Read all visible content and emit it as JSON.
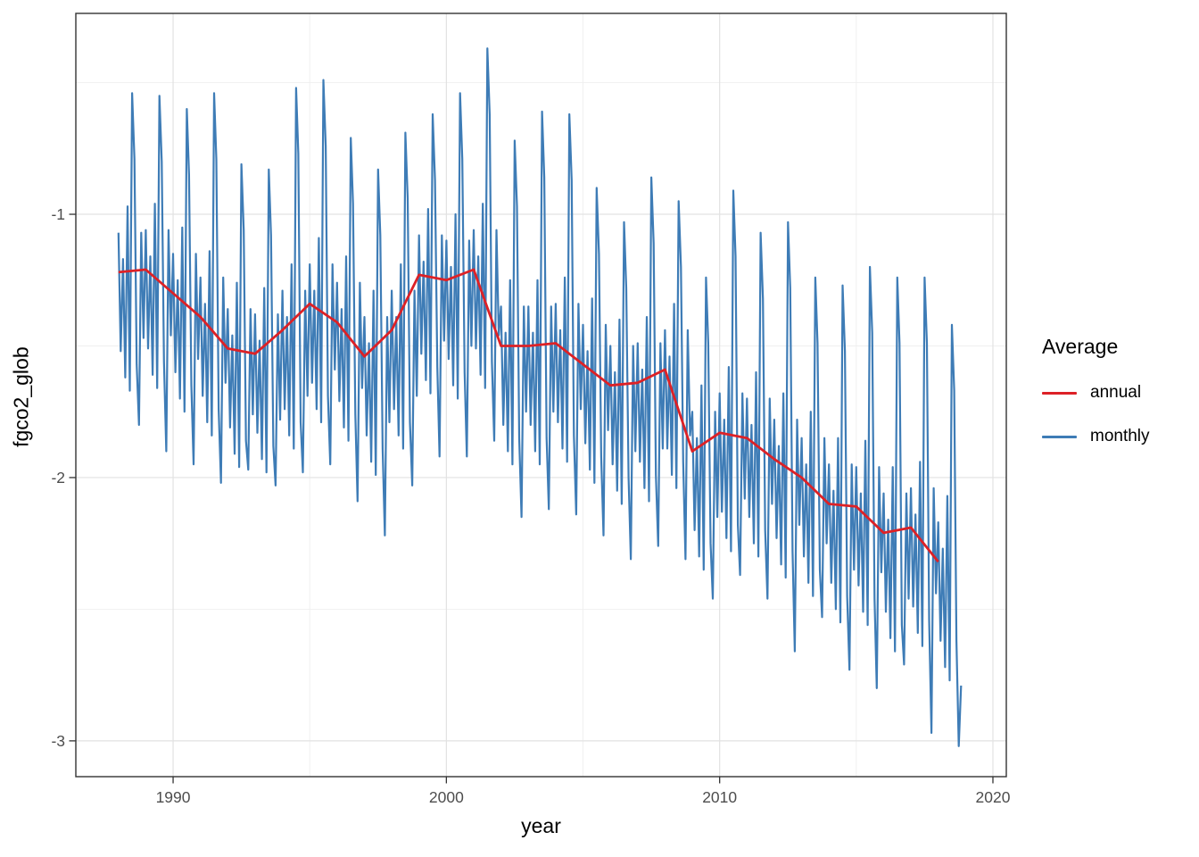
{
  "chart_data": {
    "type": "line",
    "title": "",
    "xlabel": "year",
    "ylabel": "fgco2_glob",
    "xlim": [
      1986.44,
      2020.49
    ],
    "ylim": [
      -3.136,
      -0.237
    ],
    "grid": true,
    "x_ticks": [
      1990,
      2000,
      2010,
      2020
    ],
    "x_tick_labels": [
      "1990",
      "2000",
      "2010",
      "2020"
    ],
    "x_minor_ticks": [
      1995,
      2005,
      2015
    ],
    "y_ticks": [
      -1,
      -2,
      -3
    ],
    "y_tick_labels": [
      "-1",
      "-2",
      "-3"
    ],
    "y_minor_ticks": [
      -0.5,
      -1.5,
      -2.5
    ],
    "legend": {
      "title": "Average",
      "position": "right",
      "items": [
        {
          "label": "annual",
          "color": "#dd2126"
        },
        {
          "label": "monthly",
          "color": "#3e7cb6"
        }
      ]
    },
    "series": [
      {
        "name": "annual",
        "color": "#dd2126",
        "width": 2.8,
        "x": [
          1988,
          1989,
          1990,
          1991,
          1992,
          1993,
          1994,
          1995,
          1996,
          1997,
          1998,
          1999,
          2000,
          2001,
          2002,
          2003,
          2004,
          2005,
          2006,
          2007,
          2008,
          2009,
          2010,
          2011,
          2012,
          2013,
          2014,
          2015,
          2016,
          2017,
          2018
        ],
        "values": [
          -1.22,
          -1.21,
          -1.3,
          -1.39,
          -1.51,
          -1.53,
          -1.44,
          -1.34,
          -1.41,
          -1.54,
          -1.44,
          -1.23,
          -1.25,
          -1.21,
          -1.5,
          -1.5,
          -1.49,
          -1.57,
          -1.65,
          -1.64,
          -1.59,
          -1.9,
          -1.83,
          -1.85,
          -1.93,
          -2.0,
          -2.1,
          -2.11,
          -2.21,
          -2.19,
          -2.32
        ]
      },
      {
        "name": "monthly",
        "color": "#3e7cb6",
        "width": 2.2,
        "x_start_year": 1988,
        "x_step": "1 month",
        "values": [
          -1.07,
          -1.52,
          -1.17,
          -1.62,
          -0.97,
          -1.67,
          -0.54,
          -0.79,
          -1.57,
          -1.8,
          -1.07,
          -1.47,
          -1.06,
          -1.51,
          -1.16,
          -1.61,
          -0.96,
          -1.66,
          -0.55,
          -0.8,
          -1.56,
          -1.9,
          -1.06,
          -1.46,
          -1.15,
          -1.6,
          -1.25,
          -1.7,
          -1.05,
          -1.75,
          -0.6,
          -0.85,
          -1.65,
          -1.95,
          -1.15,
          -1.55,
          -1.24,
          -1.69,
          -1.34,
          -1.79,
          -1.14,
          -1.84,
          -0.54,
          -0.79,
          -1.74,
          -2.02,
          -1.24,
          -1.64,
          -1.36,
          -1.81,
          -1.46,
          -1.91,
          -1.26,
          -1.96,
          -0.81,
          -1.06,
          -1.86,
          -1.97,
          -1.36,
          -1.76,
          -1.38,
          -1.83,
          -1.48,
          -1.93,
          -1.28,
          -1.98,
          -0.83,
          -1.08,
          -1.88,
          -2.03,
          -1.38,
          -1.78,
          -1.29,
          -1.74,
          -1.39,
          -1.84,
          -1.19,
          -1.89,
          -0.52,
          -0.77,
          -1.79,
          -1.98,
          -1.29,
          -1.69,
          -1.19,
          -1.64,
          -1.29,
          -1.74,
          -1.09,
          -1.79,
          -0.49,
          -0.74,
          -1.69,
          -1.95,
          -1.19,
          -1.59,
          -1.26,
          -1.71,
          -1.36,
          -1.81,
          -1.16,
          -1.86,
          -0.71,
          -0.96,
          -1.76,
          -2.09,
          -1.26,
          -1.66,
          -1.39,
          -1.84,
          -1.49,
          -1.94,
          -1.29,
          -1.99,
          -0.83,
          -1.08,
          -1.89,
          -2.22,
          -1.39,
          -1.79,
          -1.29,
          -1.74,
          -1.39,
          -1.84,
          -1.19,
          -1.89,
          -0.69,
          -0.94,
          -1.79,
          -2.03,
          -1.29,
          -1.69,
          -1.08,
          -1.53,
          -1.18,
          -1.63,
          -0.98,
          -1.68,
          -0.62,
          -0.87,
          -1.58,
          -1.92,
          -1.08,
          -1.48,
          -1.1,
          -1.55,
          -1.2,
          -1.65,
          -1.0,
          -1.7,
          -0.54,
          -0.79,
          -1.6,
          -1.92,
          -1.1,
          -1.5,
          -1.06,
          -1.51,
          -1.16,
          -1.61,
          -0.96,
          -1.66,
          -0.37,
          -0.62,
          -1.56,
          -1.86,
          -1.06,
          -1.46,
          -1.35,
          -1.8,
          -1.45,
          -1.9,
          -1.25,
          -1.95,
          -0.72,
          -0.97,
          -1.85,
          -2.15,
          -1.35,
          -1.75,
          -1.35,
          -1.8,
          -1.45,
          -1.9,
          -1.25,
          -1.95,
          -0.61,
          -0.86,
          -1.85,
          -2.12,
          -1.35,
          -1.75,
          -1.34,
          -1.79,
          -1.44,
          -1.89,
          -1.24,
          -1.94,
          -0.62,
          -0.87,
          -1.84,
          -2.14,
          -1.34,
          -1.74,
          -1.42,
          -1.87,
          -1.52,
          -1.97,
          -1.32,
          -2.02,
          -0.9,
          -1.15,
          -1.92,
          -2.22,
          -1.42,
          -1.82,
          -1.5,
          -1.95,
          -1.6,
          -2.05,
          -1.4,
          -2.1,
          -1.03,
          -1.28,
          -2.0,
          -2.31,
          -1.5,
          -1.9,
          -1.49,
          -1.94,
          -1.59,
          -2.04,
          -1.39,
          -2.09,
          -0.86,
          -1.11,
          -1.99,
          -2.26,
          -1.49,
          -1.89,
          -1.44,
          -1.89,
          -1.54,
          -1.99,
          -1.34,
          -2.04,
          -0.95,
          -1.2,
          -1.94,
          -2.31,
          -1.44,
          -1.84,
          -1.75,
          -2.2,
          -1.85,
          -2.3,
          -1.65,
          -2.35,
          -1.24,
          -1.49,
          -2.25,
          -2.46,
          -1.75,
          -2.15,
          -1.68,
          -2.13,
          -1.78,
          -2.23,
          -1.58,
          -2.28,
          -0.91,
          -1.16,
          -2.18,
          -2.37,
          -1.68,
          -2.08,
          -1.7,
          -2.15,
          -1.8,
          -2.25,
          -1.6,
          -2.3,
          -1.07,
          -1.32,
          -2.2,
          -2.46,
          -1.7,
          -2.1,
          -1.78,
          -2.23,
          -1.88,
          -2.33,
          -1.68,
          -2.38,
          -1.03,
          -1.28,
          -2.28,
          -2.66,
          -1.78,
          -2.18,
          -1.85,
          -2.3,
          -1.95,
          -2.4,
          -1.75,
          -2.45,
          -1.24,
          -1.49,
          -2.35,
          -2.53,
          -1.85,
          -2.25,
          -1.95,
          -2.4,
          -2.05,
          -2.5,
          -1.85,
          -2.55,
          -1.27,
          -1.52,
          -2.45,
          -2.73,
          -1.95,
          -2.35,
          -1.96,
          -2.41,
          -2.06,
          -2.51,
          -1.86,
          -2.56,
          -1.2,
          -1.45,
          -2.46,
          -2.8,
          -1.96,
          -2.36,
          -2.06,
          -2.51,
          -2.16,
          -2.61,
          -1.96,
          -2.66,
          -1.24,
          -1.49,
          -2.56,
          -2.71,
          -2.06,
          -2.46,
          -2.04,
          -2.49,
          -2.14,
          -2.59,
          -1.94,
          -2.64,
          -1.24,
          -1.49,
          -2.54,
          -2.97,
          -2.04,
          -2.44,
          -2.17,
          -2.62,
          -2.27,
          -2.72,
          -2.07,
          -2.77,
          -1.42,
          -1.67,
          -2.62,
          -3.02,
          -2.79
        ]
      }
    ]
  }
}
